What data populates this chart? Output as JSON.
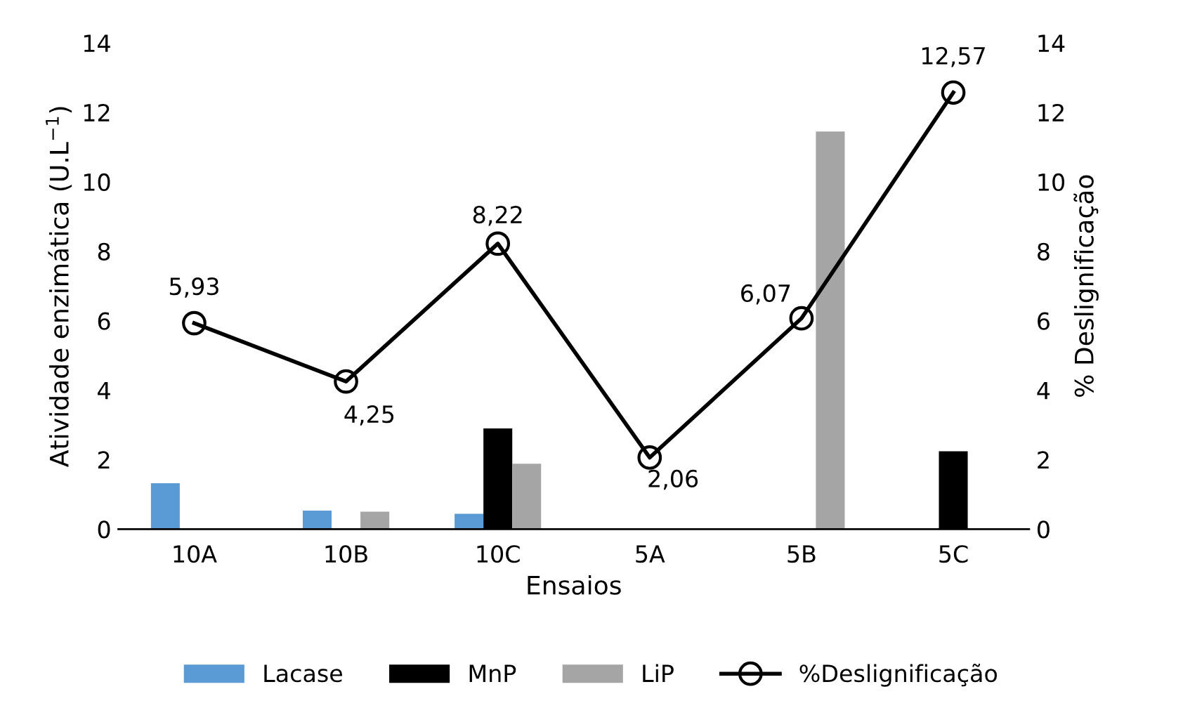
{
  "chart_data": {
    "type": "bar",
    "categories": [
      "10A",
      "10B",
      "10C",
      "5A",
      "5B",
      "5C"
    ],
    "xlabel": "Ensaios",
    "ylabel": "Atividade enzimática (U.L$^{−1}$)",
    "y2label": "% Deslignificação",
    "ylim": [
      0,
      14
    ],
    "yticks": [
      0,
      2,
      4,
      6,
      8,
      10,
      12,
      14
    ],
    "y2lim": [
      0,
      14
    ],
    "y2ticks": [
      0,
      2,
      4,
      6,
      8,
      10,
      12,
      14
    ],
    "grid": false,
    "legend": "bottom",
    "series": [
      {
        "name": "Lacase",
        "color": "#5b9bd5",
        "values": [
          1.32,
          0.53,
          0.44,
          null,
          null,
          null
        ]
      },
      {
        "name": "MnP",
        "color": "#000000",
        "values": [
          null,
          null,
          2.9,
          null,
          null,
          2.24
        ]
      },
      {
        "name": "LiP",
        "color": "#a5a5a5",
        "values": [
          null,
          0.5,
          1.88,
          null,
          11.45,
          null
        ]
      },
      {
        "name": "%Deslignificação",
        "type": "line",
        "axis": "y2",
        "color": "#000000",
        "marker": "circle",
        "line_style": "solid",
        "values": [
          5.93,
          4.25,
          8.22,
          2.06,
          6.07,
          12.57
        ],
        "value_labels": [
          "5,93",
          "4,25",
          "8,22",
          "2,06",
          "6,07",
          "12,57"
        ]
      }
    ]
  }
}
